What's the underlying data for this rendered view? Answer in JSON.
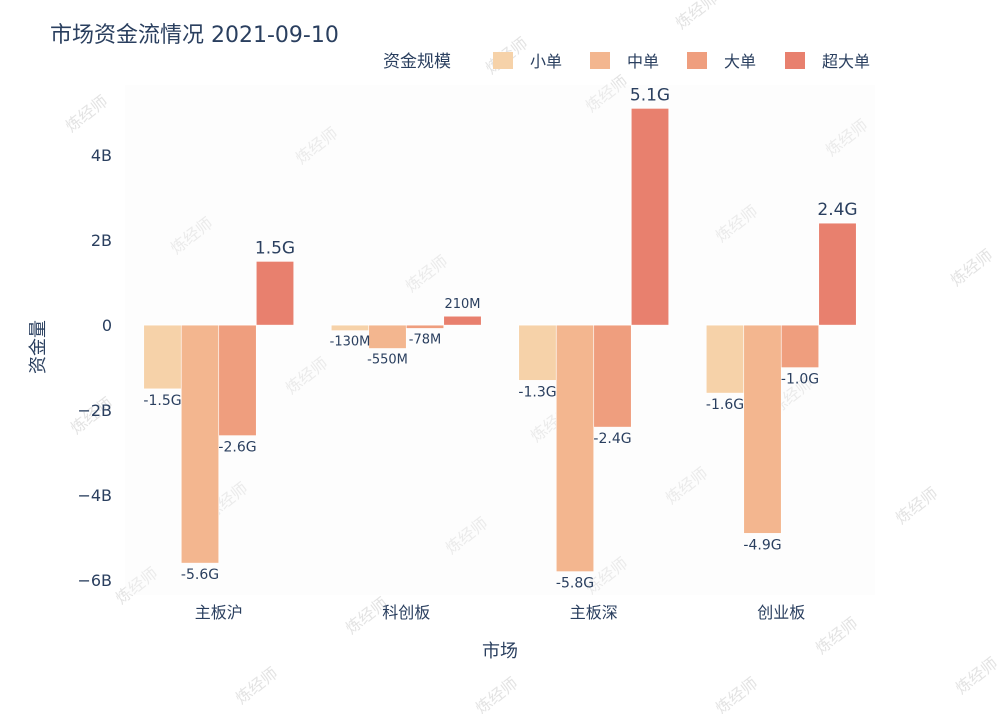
{
  "chart_data": {
    "type": "bar",
    "title": "市场资金流情况 2021-09-10",
    "xlabel": "市场",
    "ylabel": "资金量",
    "legend_title": "资金规模",
    "legend_position": "top-right",
    "categories": [
      "主板沪",
      "科创板",
      "主板深",
      "创业板"
    ],
    "series": [
      {
        "name": "小单",
        "color": "#f6d2a9",
        "values": [
          -1.5,
          -0.13,
          -1.3,
          -1.6
        ],
        "labels": [
          "-1.5G",
          "-130M",
          "-1.3G",
          "-1.6G"
        ]
      },
      {
        "name": "中单",
        "color": "#f3b68f",
        "values": [
          -5.6,
          -0.55,
          -5.8,
          -4.9
        ],
        "labels": [
          "-5.6G",
          "-550M",
          "-5.8G",
          "-4.9G"
        ]
      },
      {
        "name": "大单",
        "color": "#ef9e7e",
        "values": [
          -2.6,
          -0.078,
          -2.4,
          -1.0
        ],
        "labels": [
          "-2.6G",
          "-78M",
          "-2.4G",
          "-1.0G"
        ]
      },
      {
        "name": "超大单",
        "color": "#e8806e",
        "values": [
          1.5,
          0.21,
          5.1,
          2.4
        ],
        "labels": [
          "1.5G",
          "210M",
          "5.1G",
          "2.4G"
        ]
      }
    ],
    "value_unit": "G",
    "ylim": [
      -6.35,
      5.65
    ],
    "yticks": [
      {
        "value": 4,
        "label": "4B"
      },
      {
        "value": 2,
        "label": "2B"
      },
      {
        "value": 0,
        "label": "0"
      },
      {
        "value": -2,
        "label": "−2B"
      },
      {
        "value": -4,
        "label": "−4B"
      },
      {
        "value": -6,
        "label": "−6B"
      }
    ],
    "grid": false
  },
  "watermark": {
    "text": "炼经师"
  }
}
